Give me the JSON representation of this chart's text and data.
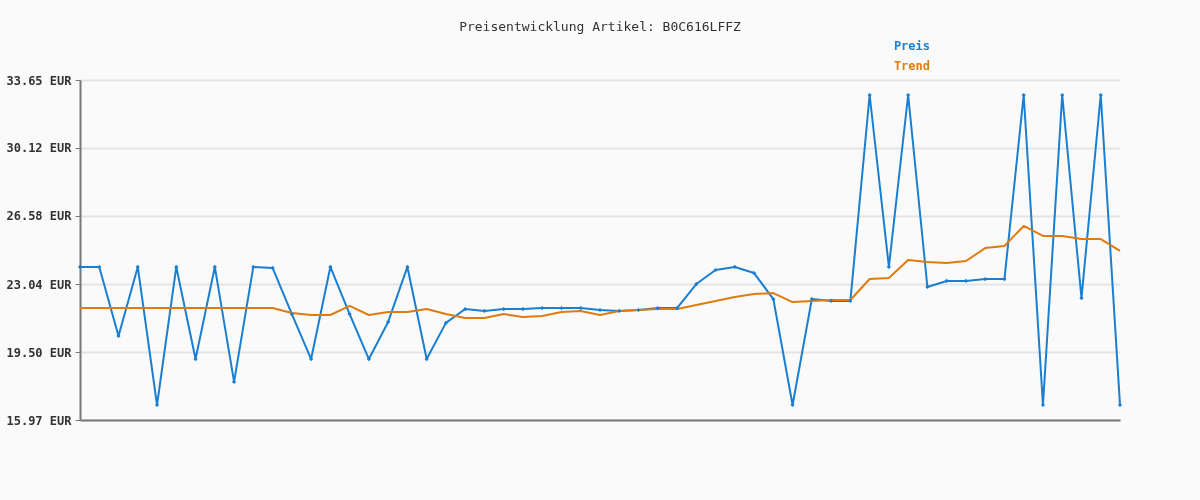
{
  "chart_data": {
    "type": "line",
    "title": "Preisentwicklung Artikel: B0C616LFFZ",
    "categories": [
      null,
      null,
      null,
      null,
      null,
      null,
      null,
      null,
      null,
      null,
      null,
      null,
      null,
      null,
      null,
      null,
      null,
      null,
      null,
      null,
      null,
      null,
      null,
      null,
      null,
      null,
      null,
      null,
      null,
      null,
      null,
      null,
      null,
      null,
      null,
      null,
      null,
      null,
      null,
      null,
      null,
      null,
      null,
      null,
      null,
      null,
      null,
      null,
      null,
      null,
      null,
      null,
      null,
      null,
      null
    ],
    "series": [
      {
        "name": "Preis",
        "color": "#1a7fd0",
        "marker": "diamond",
        "values": [
          23.93,
          23.93,
          20.34,
          23.93,
          16.75,
          23.93,
          19.14,
          23.93,
          17.95,
          23.93,
          23.88,
          21.48,
          19.14,
          23.93,
          21.48,
          19.14,
          21.07,
          23.93,
          19.14,
          21.02,
          21.74,
          21.64,
          21.74,
          21.74,
          21.79,
          21.79,
          21.79,
          21.69,
          21.64,
          21.69,
          21.79,
          21.79,
          23.04,
          23.77,
          23.93,
          23.61,
          22.26,
          16.75,
          22.26,
          22.16,
          22.16,
          32.87,
          23.93,
          32.87,
          22.89,
          23.2,
          23.2,
          23.3,
          23.3,
          32.87,
          16.75,
          32.87,
          22.31,
          32.87,
          16.75
        ]
      },
      {
        "name": "Trend",
        "color": "#e07b10",
        "marker": "none",
        "values": [
          21.79,
          21.79,
          21.79,
          21.79,
          21.79,
          21.79,
          21.79,
          21.79,
          21.79,
          21.79,
          21.79,
          21.53,
          21.43,
          21.43,
          21.9,
          21.43,
          21.59,
          21.59,
          21.74,
          21.48,
          21.27,
          21.27,
          21.48,
          21.33,
          21.38,
          21.59,
          21.64,
          21.43,
          21.64,
          21.69,
          21.74,
          21.74,
          21.95,
          22.16,
          22.37,
          22.52,
          22.57,
          22.1,
          22.16,
          22.21,
          22.21,
          23.3,
          23.35,
          24.29,
          24.19,
          24.13,
          24.24,
          24.91,
          25.02,
          26.06,
          25.54,
          25.54,
          25.38,
          25.38,
          24.76
        ]
      }
    ],
    "ylim": [
      15.97,
      33.65
    ],
    "yticks": [
      {
        "value": 15.97,
        "label": "15.97 EUR"
      },
      {
        "value": 19.5,
        "label": "19.50 EUR"
      },
      {
        "value": 23.04,
        "label": "23.04 EUR"
      },
      {
        "value": 26.58,
        "label": "26.58 EUR"
      },
      {
        "value": 30.12,
        "label": "30.12 EUR"
      },
      {
        "value": 33.65,
        "label": "33.65 EUR"
      }
    ],
    "grid": "y",
    "legend": "top right",
    "tick_labels": "y",
    "line_style": "solid"
  }
}
